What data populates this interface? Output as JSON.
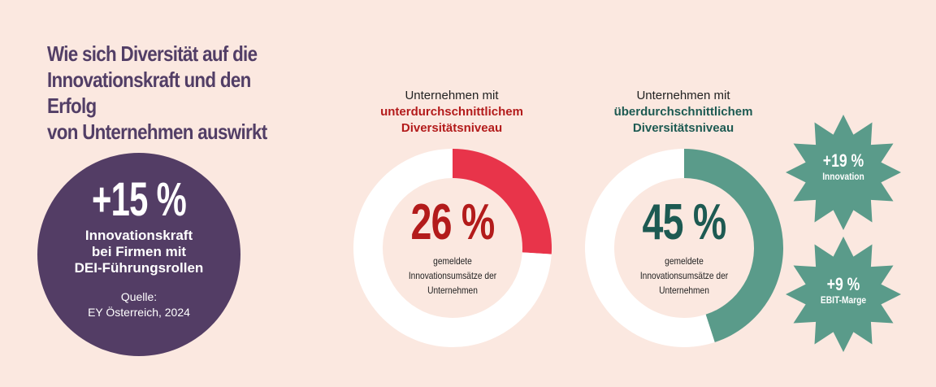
{
  "title": [
    "Wie sich Diversität auf die",
    "Innovationskraft und den Erfolg",
    "von Unternehmen auswirkt"
  ],
  "highlight": {
    "value": "+15 %",
    "lines": [
      "Innovationskraft",
      "bei Firmen mit",
      "DEI-Führungsrollen"
    ],
    "source": [
      "Quelle:",
      "EY Österreich, 2024"
    ]
  },
  "colors": {
    "background": "#fbe8e0",
    "purple": "#533d65",
    "red": "#e8344a",
    "red_text": "#b31b1b",
    "teal": "#5a9b8a",
    "teal_text": "#1d5a52",
    "ring_bg": "#ffffff"
  },
  "chart_data": [
    {
      "type": "pie",
      "variant": "donut",
      "header": [
        "Unternehmen mit",
        "unterdurchschnittlichem",
        "Diversitätsniveau"
      ],
      "value": 26,
      "value_label": "26 %",
      "caption": [
        "gemeldete",
        "Innovationsumsätze der",
        "Unternehmen"
      ],
      "slices": [
        {
          "value": 26,
          "color": "#e8344a"
        },
        {
          "value": 74,
          "color": "#ffffff"
        }
      ]
    },
    {
      "type": "pie",
      "variant": "donut",
      "header": [
        "Unternehmen mit",
        "überdurchschnittlichem",
        "Diversitätsniveau"
      ],
      "value": 45,
      "value_label": "45 %",
      "caption": [
        "gemeldete",
        "Innovationsumsätze der",
        "Unternehmen"
      ],
      "slices": [
        {
          "value": 45,
          "color": "#5a9b8a"
        },
        {
          "value": 55,
          "color": "#ffffff"
        }
      ]
    }
  ],
  "badges": [
    {
      "value": "+19 %",
      "label": "Innovation"
    },
    {
      "value": "+9 %",
      "label": "EBIT-Marge"
    }
  ]
}
